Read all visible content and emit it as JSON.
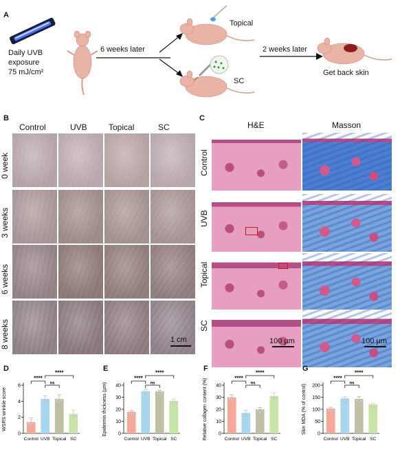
{
  "panel_a": {
    "label": "A",
    "step1": [
      "Daily UVB",
      "exposure",
      "75 mJ/cm²"
    ],
    "arrow1": "6 weeks later",
    "topical": "Topical",
    "sc": "SC",
    "arrow2": "2 weeks later",
    "final": "Get back skin"
  },
  "panel_b": {
    "label": "B",
    "columns": [
      "Control",
      "UVB",
      "Topical",
      "SC"
    ],
    "rows": [
      "0 week",
      "3 weeks",
      "6 weeks",
      "8 weeks"
    ],
    "scale": "1 cm"
  },
  "panel_c": {
    "label": "C",
    "columns": [
      "H&E",
      "Masson"
    ],
    "rows": [
      "Control",
      "UVB",
      "Topical",
      "SC"
    ],
    "scale_he": "100 µm",
    "scale_masson": "100 µm"
  },
  "colors": {
    "control": "#f4a998",
    "uvb": "#a7d6ee",
    "topical": "#bfbfa4",
    "sc": "#c6e4a6"
  },
  "chart_data": [
    {
      "panel": "D",
      "type": "bar",
      "categories": [
        "Control",
        "UVB",
        "Topical",
        "SC"
      ],
      "values": [
        1.4,
        4.3,
        4.3,
        2.4
      ],
      "errors": [
        0.5,
        0.4,
        0.5,
        0.5
      ],
      "ylabel": "WSRS wrinkle score",
      "ylim": [
        0,
        6
      ],
      "yticks": [
        0,
        2,
        4,
        6
      ],
      "significance": [
        {
          "from": 0,
          "to": 1,
          "label": "****"
        },
        {
          "from": 1,
          "to": 2,
          "label": "ns"
        },
        {
          "from": 1,
          "to": 3,
          "label": "****"
        }
      ]
    },
    {
      "panel": "E",
      "type": "bar",
      "categories": [
        "Control",
        "UVB",
        "Topical",
        "SC"
      ],
      "values": [
        18,
        35,
        35,
        27
      ],
      "errors": [
        1,
        1.5,
        1,
        1.5
      ],
      "ylabel": "Epidermis thickness (µm)",
      "ylim": [
        0,
        40
      ],
      "yticks": [
        0,
        10,
        20,
        30,
        40
      ],
      "significance": [
        {
          "from": 0,
          "to": 1,
          "label": "****"
        },
        {
          "from": 1,
          "to": 2,
          "label": "ns"
        },
        {
          "from": 1,
          "to": 3,
          "label": "****"
        }
      ]
    },
    {
      "panel": "F",
      "type": "bar",
      "categories": [
        "Control",
        "UVB",
        "Topical",
        "SC"
      ],
      "values": [
        30,
        17,
        20,
        31
      ],
      "errors": [
        2,
        2,
        1.5,
        2.5
      ],
      "ylabel": "Relative collagen content (%)",
      "ylim": [
        0,
        40
      ],
      "yticks": [
        0,
        10,
        20,
        30,
        40
      ],
      "significance": [
        {
          "from": 0,
          "to": 1,
          "label": "****"
        },
        {
          "from": 1,
          "to": 2,
          "label": "ns"
        },
        {
          "from": 1,
          "to": 3,
          "label": "****"
        }
      ]
    },
    {
      "panel": "G",
      "type": "bar",
      "categories": [
        "Control",
        "UVB",
        "Topical",
        "SC"
      ],
      "values": [
        103,
        145,
        143,
        120
      ],
      "errors": [
        5,
        7,
        10,
        5
      ],
      "ylabel": "Skin MDA (% of control)",
      "ylim": [
        0,
        200
      ],
      "yticks": [
        0,
        50,
        100,
        150,
        200
      ],
      "significance": [
        {
          "from": 0,
          "to": 1,
          "label": "****"
        },
        {
          "from": 1,
          "to": 2,
          "label": "ns"
        },
        {
          "from": 1,
          "to": 3,
          "label": "****"
        }
      ]
    }
  ]
}
